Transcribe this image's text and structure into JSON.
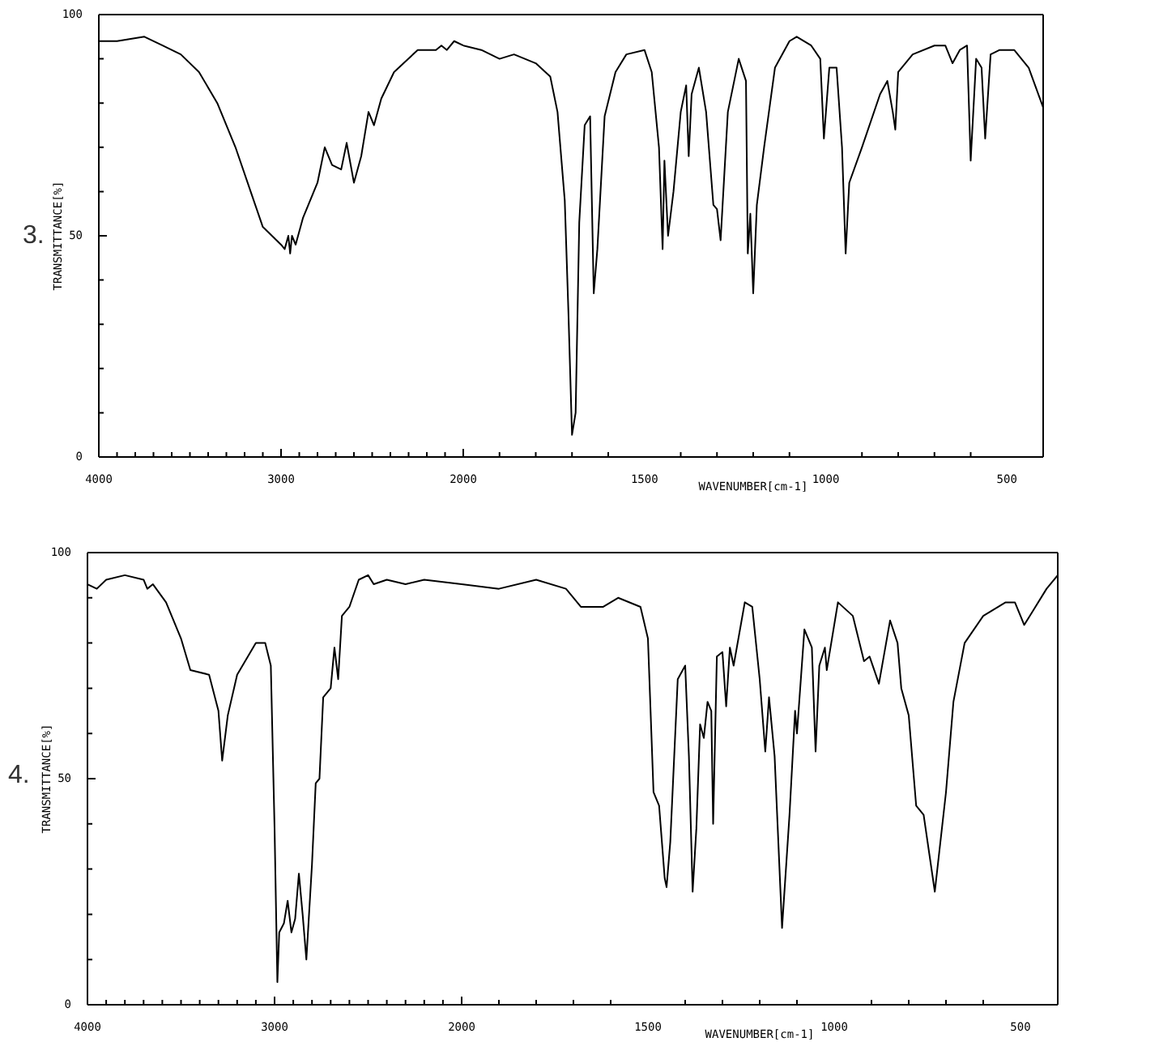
{
  "chart_data": [
    {
      "type": "line",
      "title": "3.",
      "ylabel": "TRANSMITTANCE[%]",
      "xlim": [
        4000,
        2000
      ],
      "xticks": [
        4000,
        {
          "value": 3900,
          "label": null
        },
        {
          "value": 3800,
          "label": null
        },
        {
          "value": 3700,
          "label": null
        },
        {
          "value": 3600,
          "label": null
        },
        {
          "value": 3500,
          "label": null
        },
        {
          "value": 3400,
          "label": null
        },
        {
          "value": 3300,
          "label": null
        },
        {
          "value": 3200,
          "label": null
        },
        {
          "value": 3100,
          "label": null
        },
        3000,
        {
          "value": 2900,
          "label": null
        },
        {
          "value": 2800,
          "label": null
        },
        {
          "value": 2700,
          "label": null
        },
        {
          "value": 2600,
          "label": null
        },
        {
          "value": 2500,
          "label": null
        },
        {
          "value": 2400,
          "label": null
        },
        {
          "value": 2300,
          "label": null
        },
        {
          "value": 2200,
          "label": null
        },
        {
          "value": 2100,
          "label": null
        },
        2000
      ],
      "ylim": [
        0,
        100
      ],
      "yticks": [
        0,
        {
          "value": 10,
          "label": null
        },
        {
          "value": 20,
          "label": null
        },
        {
          "value": 30,
          "label": null
        },
        {
          "value": 40,
          "label": null
        },
        50,
        {
          "value": 60,
          "label": null
        },
        {
          "value": 70,
          "label": null
        },
        {
          "value": 80,
          "label": null
        },
        {
          "value": 90,
          "label": null
        },
        100
      ],
      "grid": false,
      "legend": false,
      "marker": "none",
      "series": [
        {
          "color": "#000000",
          "x": [
            4000,
            3950,
            3900,
            3750,
            3650,
            3550,
            3450,
            3350,
            3250,
            3150,
            3100,
            3050,
            3000,
            2980,
            2960,
            2950,
            2940,
            2920,
            2880,
            2800,
            2760,
            2720,
            2670,
            2640,
            2600,
            2560,
            2520,
            2490,
            2450,
            2380,
            2250,
            2150,
            2120,
            2090,
            2050,
            2000
          ],
          "values": [
            94,
            94,
            94,
            95,
            93,
            91,
            87,
            80,
            70,
            58,
            52,
            50,
            48,
            47,
            50,
            46,
            50,
            48,
            54,
            62,
            70,
            66,
            65,
            71,
            62,
            68,
            78,
            75,
            81,
            87,
            92,
            92,
            93,
            92,
            94,
            93
          ]
        }
      ]
    },
    {
      "type": "line",
      "xlabel": "WAVENUMBER[cm-1]",
      "xlim": [
        2000,
        400
      ],
      "xticks": [
        {
          "value": 1900,
          "label": null
        },
        {
          "value": 1800,
          "label": null
        },
        {
          "value": 1700,
          "label": null
        },
        {
          "value": 1600,
          "label": null
        },
        1500,
        {
          "value": 1400,
          "label": null
        },
        {
          "value": 1300,
          "label": null
        },
        {
          "value": 1200,
          "label": null
        },
        {
          "value": 1100,
          "label": null
        },
        1000,
        {
          "value": 900,
          "label": null
        },
        {
          "value": 800,
          "label": null
        },
        {
          "value": 700,
          "label": null
        },
        {
          "value": 600,
          "label": null
        },
        500
      ],
      "ylim": [
        0,
        100
      ],
      "tick_labels": "x",
      "grid": false,
      "legend": false,
      "marker": "none",
      "series": [
        {
          "color": "#000000",
          "x": [
            2000,
            1950,
            1900,
            1860,
            1800,
            1760,
            1740,
            1720,
            1710,
            1700,
            1690,
            1680,
            1665,
            1650,
            1640,
            1630,
            1610,
            1580,
            1550,
            1500,
            1480,
            1460,
            1450,
            1445,
            1435,
            1420,
            1400,
            1385,
            1378,
            1370,
            1350,
            1330,
            1310,
            1300,
            1290,
            1270,
            1240,
            1220,
            1215,
            1208,
            1200,
            1190,
            1170,
            1140,
            1100,
            1080,
            1040,
            1015,
            1005,
            990,
            970,
            955,
            945,
            935,
            900,
            850,
            830,
            815,
            808,
            800,
            760,
            700,
            670,
            650,
            630,
            610,
            600,
            585,
            570,
            560,
            545,
            520,
            480,
            440,
            400
          ],
          "values": [
            93,
            92,
            90,
            91,
            89,
            86,
            78,
            58,
            33,
            5,
            10,
            53,
            75,
            77,
            37,
            47,
            77,
            87,
            91,
            92,
            87,
            70,
            47,
            67,
            50,
            60,
            78,
            84,
            68,
            82,
            88,
            78,
            57,
            56,
            49,
            78,
            90,
            85,
            46,
            55,
            37,
            57,
            70,
            88,
            94,
            95,
            93,
            90,
            72,
            88,
            88,
            70,
            46,
            62,
            70,
            82,
            85,
            78,
            74,
            87,
            91,
            93,
            93,
            89,
            92,
            93,
            67,
            90,
            88,
            72,
            91,
            92,
            92,
            88,
            79
          ]
        }
      ]
    },
    {
      "type": "line",
      "title": "4.",
      "ylabel": "TRANSMITTANCE[%]",
      "xlim": [
        4000,
        2000
      ],
      "xticks": [
        4000,
        {
          "value": 3900,
          "label": null
        },
        {
          "value": 3800,
          "label": null
        },
        {
          "value": 3700,
          "label": null
        },
        {
          "value": 3600,
          "label": null
        },
        {
          "value": 3500,
          "label": null
        },
        {
          "value": 3400,
          "label": null
        },
        {
          "value": 3300,
          "label": null
        },
        {
          "value": 3200,
          "label": null
        },
        {
          "value": 3100,
          "label": null
        },
        3000,
        {
          "value": 2900,
          "label": null
        },
        {
          "value": 2800,
          "label": null
        },
        {
          "value": 2700,
          "label": null
        },
        {
          "value": 2600,
          "label": null
        },
        {
          "value": 2500,
          "label": null
        },
        {
          "value": 2400,
          "label": null
        },
        {
          "value": 2300,
          "label": null
        },
        {
          "value": 2200,
          "label": null
        },
        {
          "value": 2100,
          "label": null
        },
        2000
      ],
      "ylim": [
        0,
        100
      ],
      "yticks": [
        0,
        {
          "value": 10,
          "label": null
        },
        {
          "value": 20,
          "label": null
        },
        {
          "value": 30,
          "label": null
        },
        {
          "value": 40,
          "label": null
        },
        50,
        {
          "value": 60,
          "label": null
        },
        {
          "value": 70,
          "label": null
        },
        {
          "value": 80,
          "label": null
        },
        {
          "value": 90,
          "label": null
        },
        100
      ],
      "grid": false,
      "legend": false,
      "marker": "none",
      "series": [
        {
          "color": "#000000",
          "x": [
            4000,
            3950,
            3900,
            3800,
            3700,
            3680,
            3650,
            3580,
            3500,
            3450,
            3350,
            3300,
            3280,
            3250,
            3200,
            3100,
            3050,
            3020,
            3000,
            2985,
            2975,
            2950,
            2930,
            2910,
            2890,
            2870,
            2850,
            2830,
            2800,
            2780,
            2760,
            2740,
            2700,
            2680,
            2660,
            2640,
            2600,
            2550,
            2500,
            2470,
            2400,
            2300,
            2200,
            2000
          ],
          "values": [
            93,
            92,
            94,
            95,
            94,
            92,
            93,
            89,
            81,
            74,
            73,
            65,
            54,
            64,
            73,
            80,
            80,
            75,
            39,
            5,
            16,
            18,
            23,
            16,
            19,
            29,
            20,
            10,
            31,
            49,
            50,
            68,
            70,
            79,
            72,
            86,
            88,
            94,
            95,
            93,
            94,
            93,
            94,
            93
          ]
        }
      ]
    },
    {
      "type": "line",
      "xlabel": "WAVENUMBER[cm-1]",
      "xlim": [
        2000,
        400
      ],
      "xticks": [
        {
          "value": 1900,
          "label": null
        },
        {
          "value": 1800,
          "label": null
        },
        {
          "value": 1700,
          "label": null
        },
        {
          "value": 1600,
          "label": null
        },
        1500,
        {
          "value": 1400,
          "label": null
        },
        {
          "value": 1300,
          "label": null
        },
        {
          "value": 1200,
          "label": null
        },
        {
          "value": 1100,
          "label": null
        },
        1000,
        {
          "value": 900,
          "label": null
        },
        {
          "value": 800,
          "label": null
        },
        {
          "value": 700,
          "label": null
        },
        {
          "value": 600,
          "label": null
        },
        500
      ],
      "ylim": [
        0,
        100
      ],
      "tick_labels": "x",
      "grid": false,
      "legend": false,
      "marker": "none",
      "series": [
        {
          "color": "#000000",
          "x": [
            2000,
            1900,
            1800,
            1720,
            1680,
            1620,
            1580,
            1520,
            1500,
            1485,
            1470,
            1455,
            1450,
            1440,
            1420,
            1400,
            1390,
            1380,
            1370,
            1360,
            1350,
            1340,
            1330,
            1325,
            1315,
            1300,
            1290,
            1280,
            1270,
            1240,
            1220,
            1200,
            1185,
            1175,
            1160,
            1140,
            1120,
            1105,
            1100,
            1080,
            1060,
            1050,
            1040,
            1025,
            1020,
            990,
            950,
            920,
            905,
            880,
            850,
            830,
            820,
            800,
            780,
            760,
            730,
            700,
            680,
            650,
            600,
            540,
            515,
            490,
            460,
            430,
            400
          ],
          "values": [
            93,
            92,
            94,
            92,
            88,
            88,
            90,
            88,
            81,
            47,
            44,
            28,
            26,
            36,
            72,
            75,
            55,
            25,
            39,
            62,
            59,
            67,
            65,
            40,
            77,
            78,
            66,
            79,
            75,
            89,
            88,
            72,
            56,
            68,
            55,
            17,
            42,
            65,
            60,
            83,
            79,
            56,
            75,
            79,
            74,
            89,
            86,
            76,
            77,
            71,
            85,
            80,
            70,
            64,
            44,
            42,
            25,
            47,
            67,
            80,
            86,
            89,
            89,
            84,
            88,
            92,
            95
          ]
        }
      ]
    }
  ]
}
